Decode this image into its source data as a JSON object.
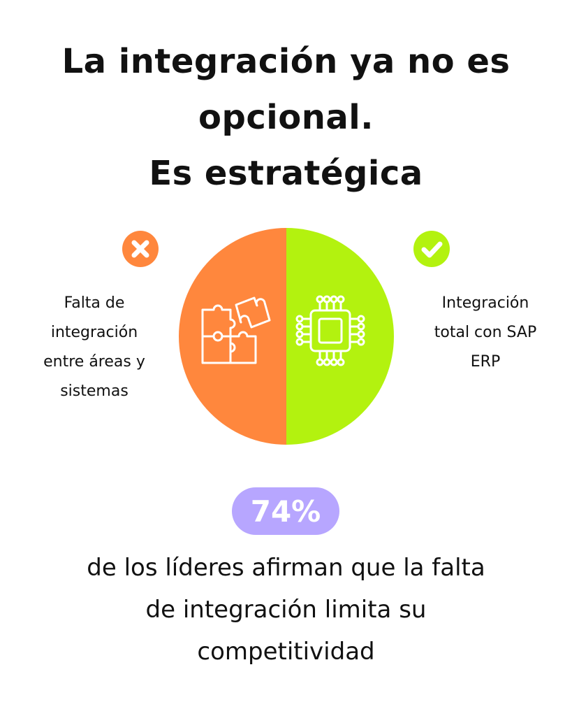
{
  "title": {
    "lines": [
      "La integración ya no es",
      "opcional.",
      "Es estratégica"
    ]
  },
  "left": {
    "status_icon": "x-circle-icon",
    "segment_icon": "puzzle-icon",
    "color": "#ff873d",
    "lines": [
      "Falta de",
      "integración",
      "entre áreas y",
      "sistemas"
    ]
  },
  "right": {
    "status_icon": "check-circle-icon",
    "segment_icon": "microchip-icon",
    "color": "#b3f20f",
    "lines": [
      "Integración",
      "total con SAP",
      "ERP"
    ]
  },
  "stat": {
    "value": "74%",
    "badge_color": "#b7a6ff",
    "caption_lines": [
      "de los líderes afirman que la falta",
      "de integración limita su",
      "competitividad"
    ]
  }
}
